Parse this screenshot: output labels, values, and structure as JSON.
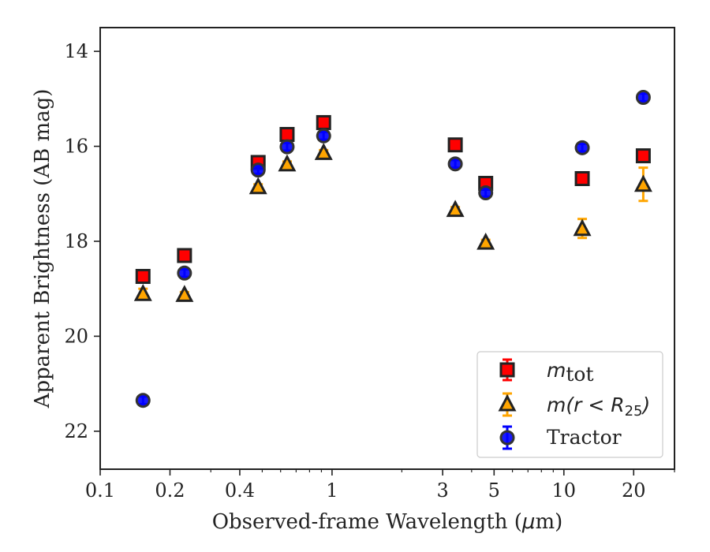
{
  "chart_data": {
    "type": "scatter",
    "xlabel_pre": "Observed-frame Wavelength (",
    "xlabel_mu": "μ",
    "xlabel_post": "m)",
    "ylabel": "Apparent Brightness (AB mag)",
    "xscale": "log",
    "yinverted": true,
    "xlim": [
      0.1,
      30
    ],
    "ylim": [
      22.8,
      13.5
    ],
    "x_ticks": [
      {
        "value": 0.1,
        "label": "0.1"
      },
      {
        "value": 0.2,
        "label": "0.2"
      },
      {
        "value": 0.4,
        "label": "0.4"
      },
      {
        "value": 1,
        "label": "1"
      },
      {
        "value": 3,
        "label": "3"
      },
      {
        "value": 5,
        "label": "5"
      },
      {
        "value": 10,
        "label": "10"
      },
      {
        "value": 20,
        "label": "20"
      }
    ],
    "y_ticks": [
      {
        "value": 14,
        "label": "14"
      },
      {
        "value": 16,
        "label": "16"
      },
      {
        "value": 18,
        "label": "18"
      },
      {
        "value": 20,
        "label": "20"
      },
      {
        "value": 22,
        "label": "22"
      }
    ],
    "grid": false,
    "legend_position": "lower-right",
    "series": [
      {
        "name": "m_tot",
        "marker": "square",
        "face": "#ff0000",
        "edge": "#222222",
        "ecolor": "#ff0000",
        "points": [
          {
            "x": 0.153,
            "y": 18.74,
            "err": 0.05
          },
          {
            "x": 0.231,
            "y": 18.3,
            "err": 0.05
          },
          {
            "x": 0.48,
            "y": 16.34,
            "err": 0.05
          },
          {
            "x": 0.64,
            "y": 15.75,
            "err": 0.05
          },
          {
            "x": 0.92,
            "y": 15.5,
            "err": 0.05
          },
          {
            "x": 3.4,
            "y": 15.97,
            "err": 0.05
          },
          {
            "x": 4.6,
            "y": 16.78,
            "err": 0.05
          },
          {
            "x": 12.0,
            "y": 16.68,
            "err": 0.05
          },
          {
            "x": 22.0,
            "y": 16.2,
            "err": 0.05
          }
        ]
      },
      {
        "name": "m(r < R25)",
        "marker": "triangle",
        "face": "#ffa500",
        "edge": "#222222",
        "ecolor": "#ffa500",
        "points": [
          {
            "x": 0.153,
            "y": 19.1,
            "err": 0.1
          },
          {
            "x": 0.231,
            "y": 19.12,
            "err": 0.05
          },
          {
            "x": 0.48,
            "y": 16.85,
            "err": 0.05
          },
          {
            "x": 0.64,
            "y": 16.37,
            "err": 0.05
          },
          {
            "x": 0.92,
            "y": 16.13,
            "err": 0.05
          },
          {
            "x": 3.4,
            "y": 17.33,
            "err": 0.05
          },
          {
            "x": 4.6,
            "y": 18.02,
            "err": 0.05
          },
          {
            "x": 12.0,
            "y": 17.73,
            "err": 0.2
          },
          {
            "x": 22.0,
            "y": 16.8,
            "err": 0.35
          }
        ]
      },
      {
        "name": "Tractor",
        "marker": "circle",
        "face": "#0000ff",
        "edge": "#333333",
        "ecolor": "#0000ff",
        "points": [
          {
            "x": 0.153,
            "y": 21.35,
            "err": 0.08
          },
          {
            "x": 0.231,
            "y": 18.67,
            "err": 0.08
          },
          {
            "x": 0.48,
            "y": 16.5,
            "err": 0.08
          },
          {
            "x": 0.64,
            "y": 16.01,
            "err": 0.08
          },
          {
            "x": 0.92,
            "y": 15.78,
            "err": 0.08
          },
          {
            "x": 3.4,
            "y": 16.37,
            "err": 0.08
          },
          {
            "x": 4.6,
            "y": 16.98,
            "err": 0.08
          },
          {
            "x": 12.0,
            "y": 16.03,
            "err": 0.08
          },
          {
            "x": 22.0,
            "y": 14.97,
            "err": 0.08
          }
        ]
      }
    ]
  }
}
